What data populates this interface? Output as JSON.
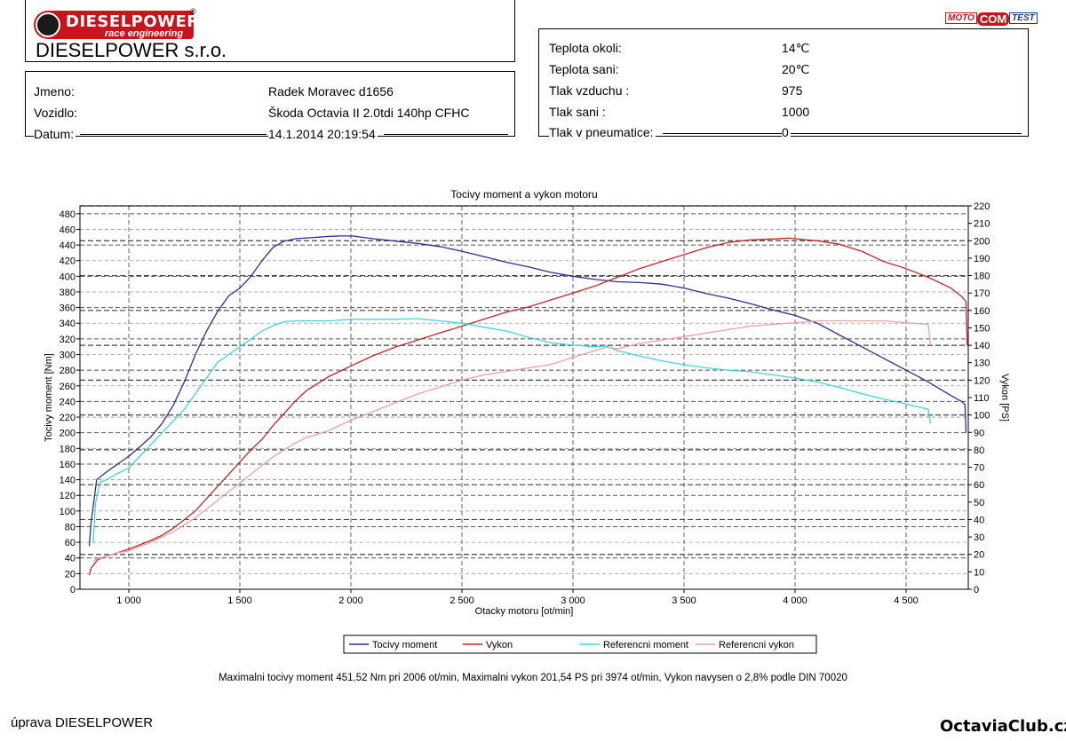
{
  "header": {
    "logo_text": "DIESELPOWER",
    "logo_sub": "race engineering",
    "registered": "®",
    "company": "DIESELPOWER s.r.o.",
    "motocomtest": [
      "MOTO",
      "COM",
      "TEST"
    ]
  },
  "customer": {
    "rows": [
      {
        "label": "Jmeno:",
        "value": "Radek Moravec d1656"
      },
      {
        "label": "Vozidlo:",
        "value": "Škoda Octavia II 2.0tdi 140hp CFHC"
      },
      {
        "label": "Datum:",
        "value": "14.1.2014 20:19:54"
      }
    ]
  },
  "conditions": {
    "rows": [
      {
        "label": "Teplota okoli:",
        "value": "14℃"
      },
      {
        "label": "Teplota sani:",
        "value": "20℃"
      },
      {
        "label": "Tlak vzduchu :",
        "value": "975"
      },
      {
        "label": "Tlak sani :",
        "value": "1000"
      },
      {
        "label": "Tlak v pneumatice:",
        "value": "0"
      }
    ]
  },
  "summary": "Maximalni tocivy moment 451,52 Nm pri 2006 ot/min,  Maximalni vykon 201,54 PS pri 3974 ot/min,  Vykon navysen o 2,8% podle DIN 70020",
  "footer": {
    "left": "úprava DIESELPOWER",
    "right": "OctaviaClub.cz"
  },
  "colors": {
    "torque": "#2e2e8f",
    "power": "#c0262a",
    "ref_torque": "#3fd6df",
    "ref_power": "#eba2a0",
    "grid_major": "#444444"
  },
  "chart_data": {
    "type": "line",
    "title": "Tocivy moment a vykon motoru",
    "xlabel": "Otacky motoru [ot/min]",
    "ylabel": "Tocivy moment [Nm]",
    "y2label": "Vykon [PS]",
    "xlim": [
      780,
      4780
    ],
    "ylim": [
      0,
      490
    ],
    "y2lim": [
      0,
      220
    ],
    "xticks": [
      1000,
      1500,
      2000,
      2500,
      3000,
      3500,
      4000,
      4500
    ],
    "xtick_labels": [
      "1 000",
      "1 500",
      "2 000",
      "2 500",
      "3 000",
      "3 500",
      "4 000",
      "4 500"
    ],
    "yticks": [
      0,
      20,
      40,
      60,
      80,
      100,
      120,
      140,
      160,
      180,
      200,
      220,
      240,
      260,
      280,
      300,
      320,
      340,
      360,
      380,
      400,
      420,
      440,
      460,
      480
    ],
    "y2ticks": [
      0,
      10,
      20,
      30,
      40,
      50,
      60,
      70,
      80,
      90,
      100,
      110,
      120,
      130,
      140,
      150,
      160,
      170,
      180,
      190,
      200,
      210,
      220
    ],
    "grid": true,
    "legend_position": "bottom",
    "series": [
      {
        "name": "Tocivy moment",
        "axis": "left",
        "color": "#2e2e8f",
        "x": [
          822,
          830,
          855,
          900,
          950,
          1000,
          1050,
          1100,
          1150,
          1200,
          1250,
          1300,
          1350,
          1400,
          1450,
          1500,
          1550,
          1600,
          1650,
          1700,
          1750,
          1800,
          1850,
          1900,
          1950,
          2006,
          2100,
          2200,
          2300,
          2400,
          2500,
          2600,
          2700,
          2800,
          2900,
          3000,
          3100,
          3200,
          3300,
          3400,
          3500,
          3600,
          3700,
          3800,
          3900,
          4000,
          4100,
          4200,
          4300,
          4400,
          4500,
          4600,
          4700,
          4750,
          4765,
          4770
        ],
        "y": [
          55,
          85,
          140,
          150,
          160,
          170,
          182,
          195,
          212,
          235,
          265,
          300,
          330,
          355,
          375,
          385,
          400,
          420,
          437,
          445,
          448,
          449,
          450,
          451,
          451.5,
          451.5,
          448,
          445,
          442,
          438,
          432,
          425,
          418,
          412,
          405,
          400,
          396,
          393,
          392,
          390,
          385,
          378,
          372,
          365,
          357,
          350,
          340,
          325,
          310,
          295,
          280,
          265,
          248,
          240,
          236,
          200
        ]
      },
      {
        "name": "Vykon",
        "axis": "right",
        "color": "#c0262a",
        "x": [
          822,
          830,
          860,
          900,
          950,
          1000,
          1050,
          1100,
          1150,
          1200,
          1250,
          1300,
          1350,
          1400,
          1450,
          1500,
          1550,
          1600,
          1650,
          1700,
          1750,
          1800,
          1850,
          1900,
          1950,
          2006,
          2100,
          2200,
          2300,
          2400,
          2500,
          2600,
          2700,
          2800,
          2900,
          3000,
          3100,
          3200,
          3300,
          3400,
          3500,
          3600,
          3700,
          3800,
          3900,
          3974,
          4050,
          4100,
          4200,
          4300,
          4400,
          4500,
          4600,
          4700,
          4750,
          4770,
          4775
        ],
        "y": [
          8,
          12,
          17,
          19,
          21,
          23,
          25.5,
          28,
          31,
          35,
          40,
          45,
          52,
          59,
          66,
          73,
          80,
          86,
          94,
          101,
          108,
          114,
          118,
          122,
          125,
          128.5,
          134,
          139,
          143,
          147,
          151,
          155,
          159,
          162,
          166,
          170,
          174,
          179,
          184,
          188,
          192,
          196,
          199,
          200.5,
          201,
          201.5,
          200.5,
          200,
          198,
          194,
          188,
          184,
          179,
          173,
          168,
          165,
          140
        ]
      },
      {
        "name": "Referencni moment",
        "axis": "left",
        "color": "#3fd6df",
        "x": [
          840,
          850,
          870,
          900,
          950,
          1000,
          1050,
          1100,
          1150,
          1200,
          1250,
          1300,
          1350,
          1400,
          1450,
          1500,
          1550,
          1600,
          1650,
          1700,
          1750,
          1800,
          1900,
          2000,
          2100,
          2200,
          2300,
          2400,
          2500,
          2600,
          2700,
          2800,
          2900,
          3000,
          3100,
          3150,
          3200,
          3300,
          3400,
          3500,
          3600,
          3700,
          3800,
          3900,
          4000,
          4100,
          4200,
          4300,
          4400,
          4500,
          4600,
          4610
        ],
        "y": [
          60,
          110,
          137,
          140,
          148,
          155,
          170,
          185,
          200,
          215,
          230,
          250,
          270,
          290,
          300,
          310,
          320,
          330,
          337,
          342,
          343,
          343,
          343,
          345,
          345,
          345,
          346,
          343,
          340,
          335,
          330,
          322,
          315,
          312,
          310,
          311,
          305,
          298,
          292,
          287,
          283,
          280,
          278,
          274,
          270,
          265,
          258,
          250,
          243,
          237,
          230,
          212
        ]
      },
      {
        "name": "Referencni vykon",
        "axis": "right",
        "color": "#eba2a0",
        "x": [
          840,
          850,
          870,
          900,
          950,
          1000,
          1050,
          1100,
          1150,
          1200,
          1250,
          1300,
          1350,
          1400,
          1450,
          1500,
          1550,
          1600,
          1650,
          1700,
          1750,
          1800,
          1900,
          2000,
          2100,
          2200,
          2300,
          2400,
          2500,
          2600,
          2700,
          2800,
          2900,
          3000,
          3100,
          3150,
          3200,
          3300,
          3400,
          3500,
          3600,
          3700,
          3800,
          3900,
          4000,
          4100,
          4200,
          4300,
          4400,
          4500,
          4600,
          4610
        ],
        "y": [
          16,
          17,
          18,
          19,
          21,
          22,
          24.5,
          27,
          30,
          33,
          37,
          41,
          46,
          51,
          56,
          61,
          66,
          71,
          76,
          80,
          84,
          87,
          91,
          97,
          102,
          107,
          112,
          116,
          120,
          123,
          125,
          127,
          129,
          133,
          137,
          139,
          138,
          141,
          143,
          145,
          147,
          149,
          151,
          152,
          153,
          154,
          154,
          154,
          154,
          153,
          152,
          140
        ]
      }
    ]
  }
}
